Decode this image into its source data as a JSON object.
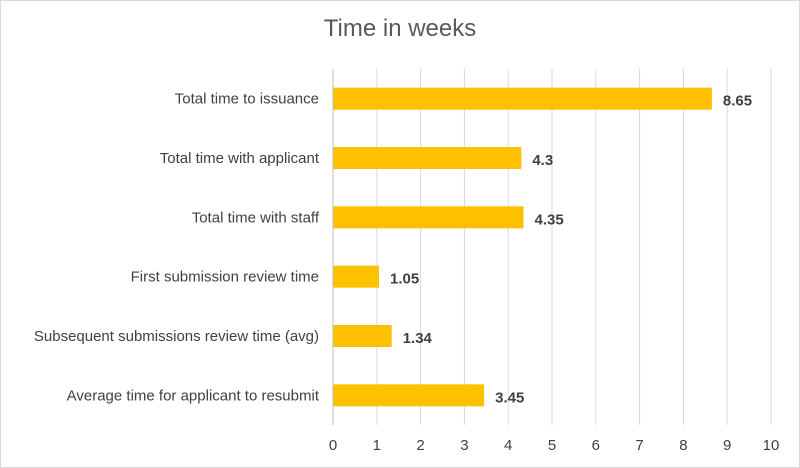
{
  "chart_data": {
    "type": "bar",
    "orientation": "horizontal",
    "title": "Time in weeks",
    "categories": [
      "Total time to issuance",
      "Total time with applicant",
      "Total time with staff",
      "First submission review time",
      "Subsequent submissions review time (avg)",
      "Average time for applicant to resubmit"
    ],
    "values": [
      8.65,
      4.3,
      4.35,
      1.05,
      1.34,
      3.45
    ],
    "data_labels": [
      "8.65",
      "4.3",
      "4.35",
      "1.05",
      "1.34",
      "3.45"
    ],
    "xlim": [
      0,
      10
    ],
    "x_ticks": [
      "0",
      "1",
      "2",
      "3",
      "4",
      "5",
      "6",
      "7",
      "8",
      "9",
      "10"
    ],
    "grid": "vertical",
    "legend": "none",
    "bar_color": "#FFC000",
    "grid_color": "#d9d9d9"
  }
}
